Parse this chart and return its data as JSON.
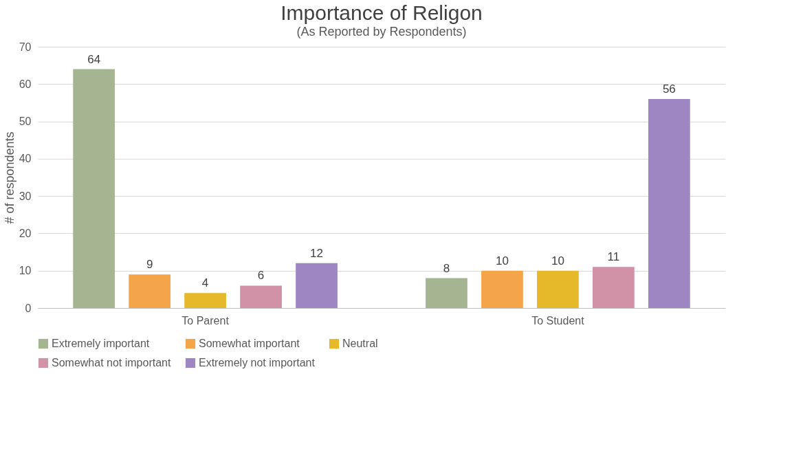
{
  "chart_data": {
    "type": "bar",
    "title": "Importance of Religon",
    "subtitle": "(As Reported by Respondents)",
    "ylabel": "# of respondents",
    "categories": [
      "To Parent",
      "To Student"
    ],
    "series": [
      {
        "name": "Extremely important",
        "color": "#a5b592",
        "values": [
          64,
          8
        ]
      },
      {
        "name": "Somewhat important",
        "color": "#f4a449",
        "values": [
          9,
          10
        ]
      },
      {
        "name": "Neutral",
        "color": "#e6b92a",
        "values": [
          4,
          10
        ]
      },
      {
        "name": "Somewhat not important",
        "color": "#d191a6",
        "values": [
          6,
          11
        ]
      },
      {
        "name": "Extremely not important",
        "color": "#9e86c3",
        "values": [
          12,
          56
        ]
      }
    ],
    "ylim": [
      0,
      70
    ],
    "yticks": [
      0,
      10,
      20,
      30,
      40,
      50,
      60,
      70
    ],
    "grid": "y",
    "legend": "bottom",
    "data_labels": true
  }
}
